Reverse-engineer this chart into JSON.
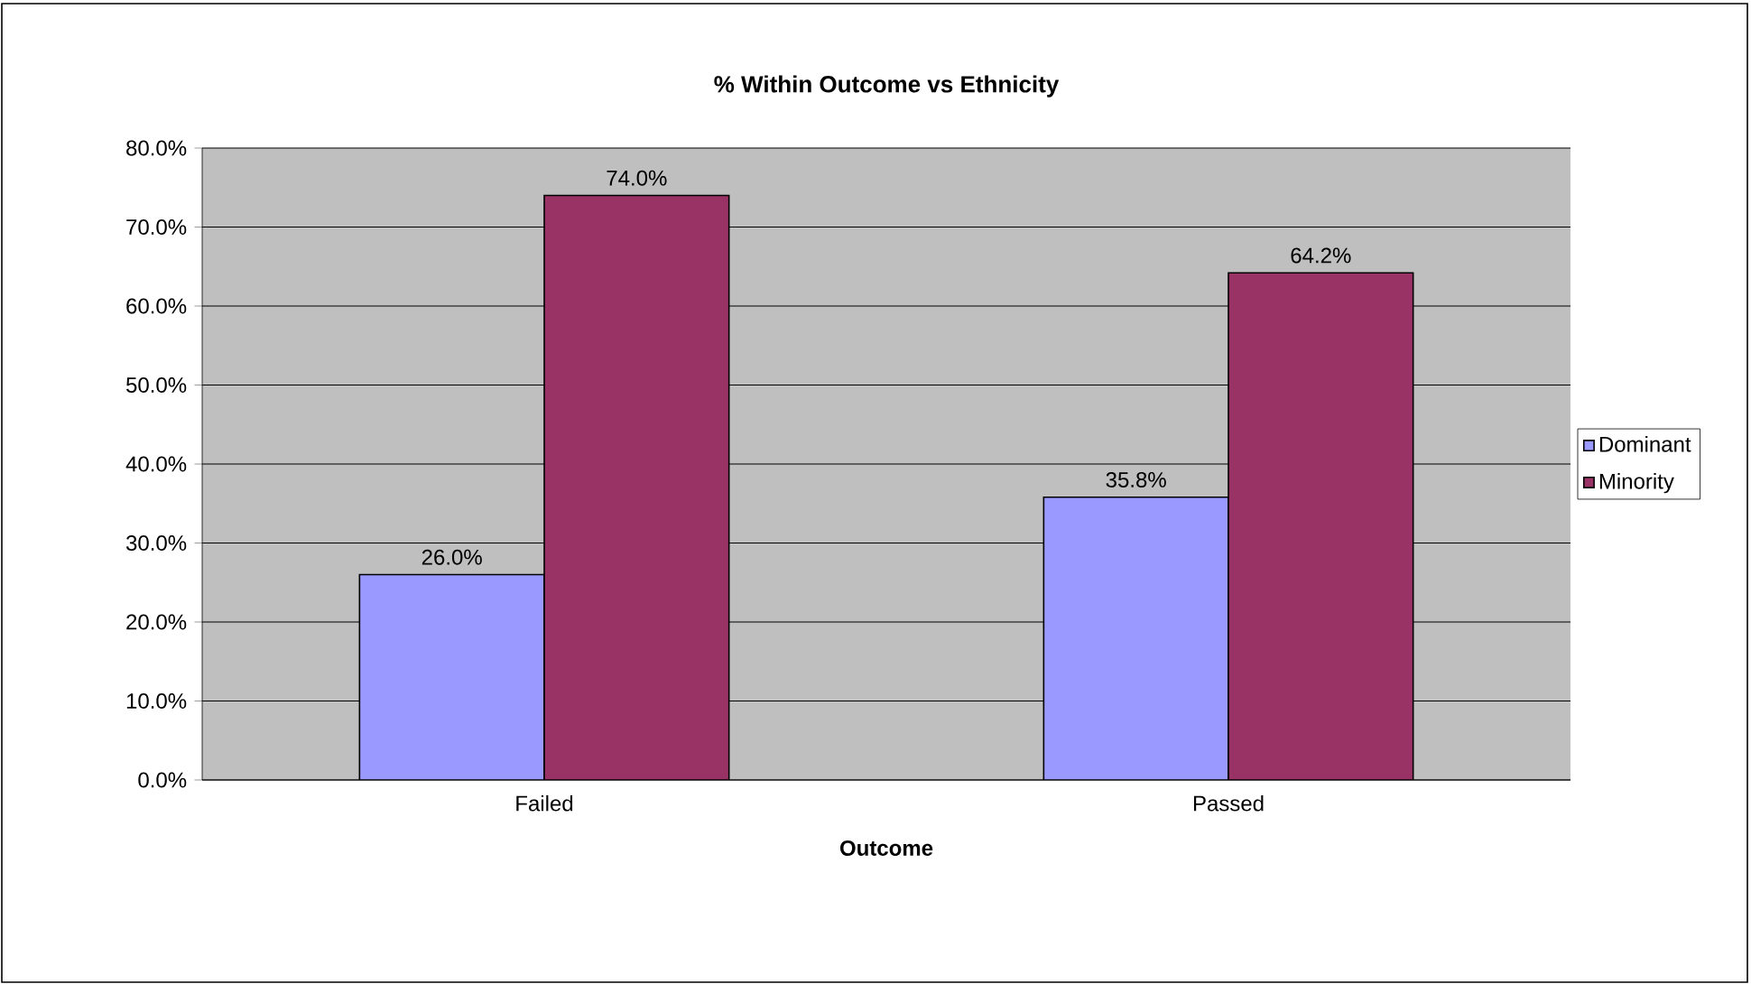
{
  "chart_data": {
    "type": "bar",
    "title": "% Within Outcome vs Ethnicity",
    "xlabel": "Outcome",
    "categories": [
      "Failed",
      "Passed"
    ],
    "series": [
      {
        "name": "Dominant",
        "color": "#9999ff",
        "values": [
          26.0,
          35.8
        ],
        "value_labels": [
          "26.0%",
          "35.8%"
        ]
      },
      {
        "name": "Minority",
        "color": "#993366",
        "values": [
          74.0,
          64.2
        ],
        "value_labels": [
          "74.0%",
          "64.2%"
        ]
      }
    ],
    "ylim": [
      0,
      80
    ],
    "yticks": [
      {
        "value": 0,
        "label": "0.0%"
      },
      {
        "value": 10,
        "label": "10.0%"
      },
      {
        "value": 20,
        "label": "20.0%"
      },
      {
        "value": 30,
        "label": "30.0%"
      },
      {
        "value": 40,
        "label": "40.0%"
      },
      {
        "value": 50,
        "label": "50.0%"
      },
      {
        "value": 60,
        "label": "60.0%"
      },
      {
        "value": 70,
        "label": "70.0%"
      },
      {
        "value": 80,
        "label": "80.0%"
      }
    ],
    "grid": "y",
    "legend": "right"
  }
}
